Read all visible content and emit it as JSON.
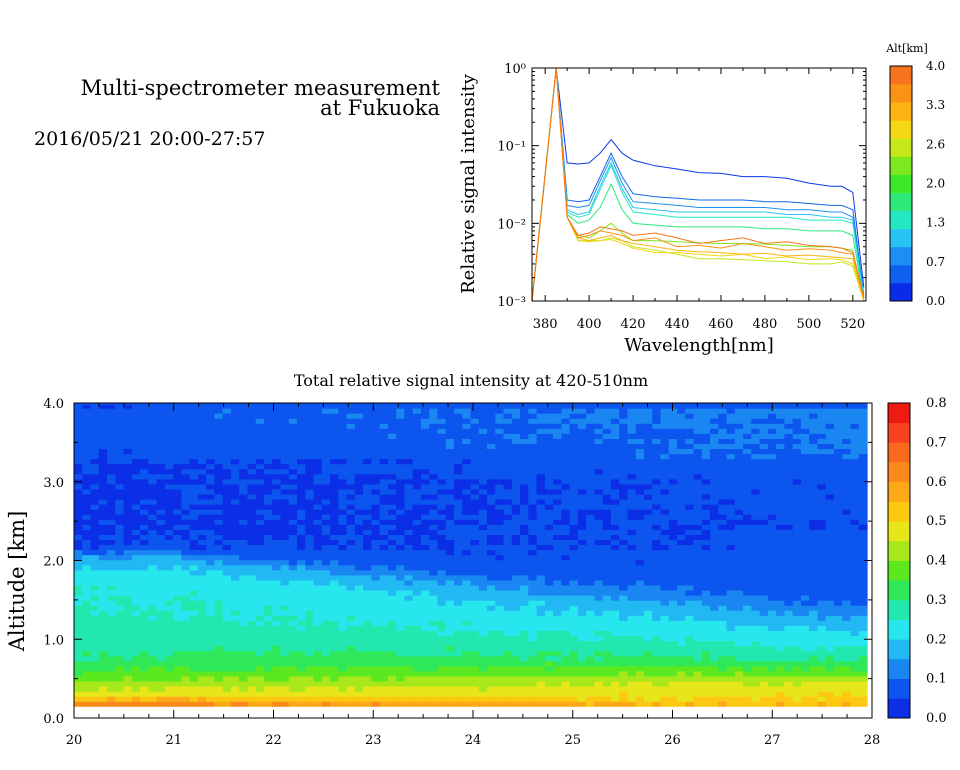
{
  "header": {
    "title_line1": "Multi-spectrometer measurement",
    "title_line2": "at Fukuoka",
    "datetime": "2016/05/21 20:00-27:57"
  },
  "colors": {
    "scale": [
      "#0b2ee6",
      "#0c55ee",
      "#1a86f2",
      "#22b8f4",
      "#27e6ee",
      "#22e8b0",
      "#2ee85a",
      "#5be81e",
      "#a8e81a",
      "#e6e61a",
      "#fcc812",
      "#fca817",
      "#fb8a1a",
      "#fa6a1e",
      "#f8411e",
      "#ee1b14"
    ],
    "background": "#ffffff"
  },
  "chart_data": [
    {
      "type": "line",
      "xlabel": "Wavelength[nm]",
      "ylabel": "Relative signal intensity",
      "yscale": "log",
      "xlim": [
        374,
        526
      ],
      "ylim": [
        0.001,
        1
      ],
      "xticks": [
        "380",
        "400",
        "420",
        "440",
        "460",
        "480",
        "500",
        "520"
      ],
      "yticks": [
        "10⁻³",
        "10⁻²",
        "10⁻¹",
        "10⁰"
      ],
      "colorbar": {
        "title": "Alt[km]",
        "ticks": [
          "0.0",
          "0.7",
          "1.3",
          "2.0",
          "2.6",
          "3.3",
          "4.0"
        ],
        "colors": [
          "#0a2ce8",
          "#1060f0",
          "#1c8ff2",
          "#26c4f2",
          "#24e8c2",
          "#2ee87a",
          "#3ee828",
          "#7ee81e",
          "#c4e81a",
          "#f4d814",
          "#fcb412",
          "#fa9214",
          "#f8741c"
        ]
      },
      "x": [
        374,
        385,
        390,
        395,
        400,
        405,
        410,
        415,
        420,
        430,
        440,
        450,
        460,
        470,
        480,
        490,
        500,
        510,
        515,
        520,
        525
      ],
      "series": [
        {
          "color": "#0c3ae6",
          "values": [
            0.001,
            1.0,
            0.06,
            0.058,
            0.06,
            0.08,
            0.12,
            0.08,
            0.065,
            0.055,
            0.05,
            0.045,
            0.044,
            0.04,
            0.04,
            0.038,
            0.033,
            0.03,
            0.03,
            0.025,
            0.0015
          ]
        },
        {
          "color": "#1466ec",
          "values": [
            0.001,
            1.0,
            0.02,
            0.019,
            0.02,
            0.04,
            0.08,
            0.04,
            0.024,
            0.022,
            0.021,
            0.02,
            0.02,
            0.02,
            0.019,
            0.019,
            0.018,
            0.017,
            0.017,
            0.015,
            0.0012
          ]
        },
        {
          "color": "#1c90f0",
          "values": [
            0.001,
            1.0,
            0.017,
            0.016,
            0.017,
            0.035,
            0.07,
            0.033,
            0.019,
            0.018,
            0.017,
            0.016,
            0.016,
            0.016,
            0.016,
            0.015,
            0.015,
            0.014,
            0.014,
            0.012,
            0.0011
          ]
        },
        {
          "color": "#26c4f2",
          "values": [
            0.001,
            1.0,
            0.015,
            0.013,
            0.014,
            0.03,
            0.06,
            0.028,
            0.016,
            0.015,
            0.014,
            0.014,
            0.014,
            0.014,
            0.014,
            0.013,
            0.013,
            0.012,
            0.012,
            0.011,
            0.0011
          ]
        },
        {
          "color": "#24e8c2",
          "values": [
            0.001,
            1.0,
            0.014,
            0.012,
            0.013,
            0.027,
            0.055,
            0.025,
            0.014,
            0.013,
            0.012,
            0.012,
            0.012,
            0.012,
            0.012,
            0.012,
            0.011,
            0.011,
            0.011,
            0.01,
            0.001
          ]
        },
        {
          "color": "#2ee87a",
          "values": [
            0.001,
            1.0,
            0.013,
            0.01,
            0.011,
            0.016,
            0.032,
            0.015,
            0.01,
            0.0095,
            0.009,
            0.009,
            0.009,
            0.009,
            0.0085,
            0.0085,
            0.008,
            0.008,
            0.008,
            0.007,
            0.001
          ]
        },
        {
          "color": "#7ee81e",
          "values": [
            0.001,
            1.0,
            0.012,
            0.007,
            0.0065,
            0.008,
            0.01,
            0.0075,
            0.006,
            0.006,
            0.0058,
            0.0056,
            0.0055,
            0.0055,
            0.0054,
            0.0052,
            0.005,
            0.005,
            0.0048,
            0.0045,
            0.001
          ]
        },
        {
          "color": "#c4e81a",
          "values": [
            0.001,
            1.0,
            0.012,
            0.006,
            0.006,
            0.006,
            0.0065,
            0.006,
            0.005,
            0.0045,
            0.004,
            0.0035,
            0.0035,
            0.0034,
            0.0033,
            0.0032,
            0.003,
            0.003,
            0.0032,
            0.0028,
            0.001
          ]
        },
        {
          "color": "#f4d814",
          "values": [
            0.001,
            1.0,
            0.012,
            0.006,
            0.0058,
            0.006,
            0.0062,
            0.0055,
            0.0048,
            0.0042,
            0.0042,
            0.004,
            0.0038,
            0.004,
            0.0035,
            0.0037,
            0.0034,
            0.0035,
            0.0034,
            0.003,
            0.001
          ]
        },
        {
          "color": "#fcb412",
          "values": [
            0.001,
            1.0,
            0.012,
            0.0065,
            0.006,
            0.0065,
            0.007,
            0.006,
            0.0055,
            0.005,
            0.0045,
            0.0043,
            0.0042,
            0.004,
            0.0041,
            0.0038,
            0.0039,
            0.0037,
            0.0036,
            0.0035,
            0.001
          ]
        },
        {
          "color": "#fa9214",
          "values": [
            0.001,
            1.0,
            0.012,
            0.0065,
            0.007,
            0.008,
            0.0075,
            0.007,
            0.006,
            0.0065,
            0.005,
            0.0052,
            0.0048,
            0.0055,
            0.005,
            0.0045,
            0.0047,
            0.0045,
            0.0042,
            0.004,
            0.0011
          ]
        },
        {
          "color": "#f8741c",
          "values": [
            0.001,
            1.0,
            0.012,
            0.007,
            0.0075,
            0.009,
            0.0085,
            0.008,
            0.007,
            0.0075,
            0.0065,
            0.0055,
            0.006,
            0.0065,
            0.0055,
            0.0058,
            0.0052,
            0.005,
            0.0048,
            0.0042,
            0.0011
          ]
        }
      ]
    },
    {
      "type": "heatmap",
      "title": "Total relative signal intensity at 420-510nm",
      "ylabel": "Altitude [km]",
      "xlabel": "",
      "xlim": [
        20,
        28
      ],
      "ylim": [
        0,
        4
      ],
      "data_xrange": [
        20,
        27.95
      ],
      "xticks": [
        "20",
        "21",
        "22",
        "23",
        "24",
        "25",
        "26",
        "27",
        "28"
      ],
      "yticks": [
        "0.0",
        "1.0",
        "2.0",
        "3.0",
        "4.0"
      ],
      "colorbar": {
        "range": [
          0,
          0.8
        ],
        "ticks": [
          "0.0",
          "0.1",
          "0.2",
          "0.3",
          "0.4",
          "0.5",
          "0.6",
          "0.7",
          "0.8"
        ]
      },
      "profile_altitude_km": [
        0.15,
        0.22,
        0.3,
        0.4,
        0.55,
        0.7,
        0.9,
        1.1,
        1.3,
        1.5,
        1.7,
        1.85,
        2.0,
        2.15,
        2.4,
        2.7,
        3.0,
        3.3,
        3.6,
        3.9,
        4.0
      ],
      "profile_value_start": [
        0.65,
        0.58,
        0.47,
        0.44,
        0.36,
        0.31,
        0.28,
        0.27,
        0.26,
        0.25,
        0.24,
        0.22,
        0.16,
        0.07,
        0.05,
        0.05,
        0.05,
        0.06,
        0.07,
        0.08,
        0.05
      ],
      "profile_value_end": [
        0.6,
        0.55,
        0.52,
        0.5,
        0.48,
        0.42,
        0.33,
        0.28,
        0.23,
        0.2,
        0.16,
        0.12,
        0.09,
        0.08,
        0.07,
        0.08,
        0.08,
        0.1,
        0.11,
        0.12,
        0.06
      ],
      "boundary_layer_top_km": {
        "x": [
          20,
          21,
          22,
          23,
          24,
          25,
          26,
          27,
          27.95
        ],
        "y": [
          1.92,
          1.96,
          1.85,
          1.78,
          1.68,
          1.62,
          1.55,
          1.45,
          1.4
        ]
      }
    }
  ]
}
